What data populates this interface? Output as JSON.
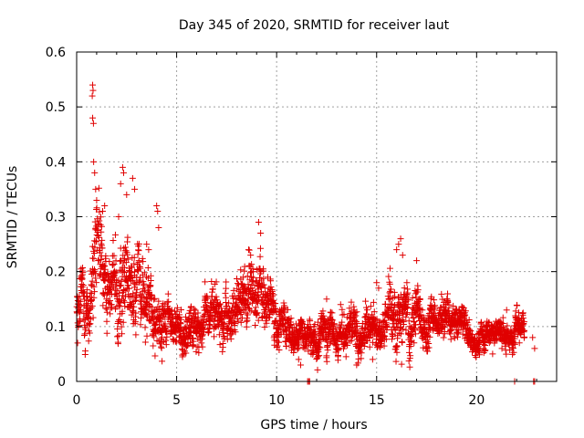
{
  "chart_data": {
    "type": "scatter",
    "title": "Day 345 of 2020, SRMTID for receiver laut",
    "xlabel": "GPS time / hours",
    "ylabel": "SRMTID / TECUs",
    "xlim": [
      0,
      24
    ],
    "ylim": [
      0,
      0.6
    ],
    "x_ticks": [
      0,
      5,
      10,
      15,
      20
    ],
    "x_tick_labels": [
      "0",
      "5",
      "10",
      "15",
      "20"
    ],
    "y_ticks": [
      0,
      0.1,
      0.2,
      0.3,
      0.4,
      0.5,
      0.6
    ],
    "y_tick_labels": [
      "0",
      "0.1",
      "0.2",
      "0.3",
      "0.4",
      "0.5",
      "0.6"
    ],
    "grid": true,
    "marker": "plus",
    "series": [
      {
        "name": "SRMTID",
        "color": "#e00000",
        "profile_x": [
          0,
          0.3,
          0.7,
          1.0,
          1.5,
          2.0,
          2.3,
          2.7,
          3.0,
          3.5,
          4.0,
          4.3,
          4.6,
          5.0,
          5.5,
          6.0,
          6.5,
          7.0,
          7.5,
          8.0,
          8.5,
          8.8,
          9.2,
          9.6,
          10.0,
          10.5,
          11.0,
          11.5,
          12.0,
          12.5,
          13.0,
          13.5,
          14.0,
          14.5,
          15.0,
          15.5,
          16.0,
          16.3,
          16.7,
          17.0,
          17.5,
          18.0,
          18.5,
          19.0,
          19.5,
          20.0,
          20.5,
          21.0,
          21.5,
          22.0,
          22.4
        ],
        "profile_center": [
          0.12,
          0.15,
          0.17,
          0.2,
          0.17,
          0.18,
          0.2,
          0.16,
          0.17,
          0.15,
          0.13,
          0.12,
          0.11,
          0.1,
          0.09,
          0.09,
          0.11,
          0.12,
          0.11,
          0.13,
          0.15,
          0.16,
          0.15,
          0.13,
          0.1,
          0.09,
          0.08,
          0.07,
          0.08,
          0.09,
          0.09,
          0.08,
          0.09,
          0.1,
          0.09,
          0.1,
          0.13,
          0.15,
          0.12,
          0.11,
          0.1,
          0.12,
          0.11,
          0.1,
          0.09,
          0.08,
          0.08,
          0.08,
          0.09,
          0.09,
          0.08
        ],
        "profile_spread": [
          0.04,
          0.05,
          0.06,
          0.08,
          0.06,
          0.07,
          0.08,
          0.06,
          0.06,
          0.05,
          0.05,
          0.04,
          0.03,
          0.03,
          0.03,
          0.03,
          0.035,
          0.04,
          0.035,
          0.04,
          0.05,
          0.05,
          0.05,
          0.04,
          0.03,
          0.03,
          0.025,
          0.025,
          0.03,
          0.035,
          0.03,
          0.03,
          0.03,
          0.03,
          0.03,
          0.035,
          0.05,
          0.05,
          0.04,
          0.035,
          0.03,
          0.035,
          0.03,
          0.03,
          0.025,
          0.02,
          0.02,
          0.02,
          0.025,
          0.025,
          0.02
        ],
        "points_per_hour": 130,
        "peaks": [
          {
            "x": 0.8,
            "y": 0.54
          },
          {
            "x": 0.82,
            "y": 0.53
          },
          {
            "x": 0.78,
            "y": 0.52
          },
          {
            "x": 0.8,
            "y": 0.48
          },
          {
            "x": 0.84,
            "y": 0.47
          },
          {
            "x": 0.85,
            "y": 0.4
          },
          {
            "x": 0.9,
            "y": 0.38
          },
          {
            "x": 0.95,
            "y": 0.35
          },
          {
            "x": 1.0,
            "y": 0.33
          },
          {
            "x": 2.3,
            "y": 0.39
          },
          {
            "x": 2.35,
            "y": 0.38
          },
          {
            "x": 2.2,
            "y": 0.36
          },
          {
            "x": 2.5,
            "y": 0.34
          },
          {
            "x": 2.8,
            "y": 0.37
          },
          {
            "x": 2.9,
            "y": 0.35
          },
          {
            "x": 2.1,
            "y": 0.3
          },
          {
            "x": 1.4,
            "y": 0.32
          },
          {
            "x": 1.3,
            "y": 0.31
          },
          {
            "x": 4.0,
            "y": 0.32
          },
          {
            "x": 4.05,
            "y": 0.31
          },
          {
            "x": 4.1,
            "y": 0.28
          },
          {
            "x": 3.5,
            "y": 0.25
          },
          {
            "x": 3.6,
            "y": 0.24
          },
          {
            "x": 9.1,
            "y": 0.29
          },
          {
            "x": 9.2,
            "y": 0.27
          },
          {
            "x": 8.6,
            "y": 0.24
          },
          {
            "x": 8.7,
            "y": 0.23
          },
          {
            "x": 16.2,
            "y": 0.26
          },
          {
            "x": 16.1,
            "y": 0.25
          },
          {
            "x": 16.0,
            "y": 0.24
          },
          {
            "x": 16.3,
            "y": 0.23
          },
          {
            "x": 17.0,
            "y": 0.22
          },
          {
            "x": 15.0,
            "y": 0.18
          },
          {
            "x": 15.1,
            "y": 0.17
          },
          {
            "x": 0.05,
            "y": 0.07
          },
          {
            "x": 22.8,
            "y": 0.08
          },
          {
            "x": 22.9,
            "y": 0.06
          },
          {
            "x": 21.5,
            "y": 0.13
          },
          {
            "x": 12.5,
            "y": 0.15
          },
          {
            "x": 13.2,
            "y": 0.14
          }
        ],
        "low_points": [
          {
            "x": 11.6,
            "y": 0.0
          },
          {
            "x": 11.65,
            "y": 0.0
          },
          {
            "x": 11.55,
            "y": 0.0
          },
          {
            "x": 21.9,
            "y": 0.0
          },
          {
            "x": 22.85,
            "y": 0.0
          },
          {
            "x": 22.9,
            "y": 0.0
          },
          {
            "x": 11.1,
            "y": 0.04
          },
          {
            "x": 11.2,
            "y": 0.03
          },
          {
            "x": 14.0,
            "y": 0.03
          },
          {
            "x": 14.8,
            "y": 0.04
          },
          {
            "x": 20.8,
            "y": 0.05
          }
        ]
      }
    ]
  }
}
